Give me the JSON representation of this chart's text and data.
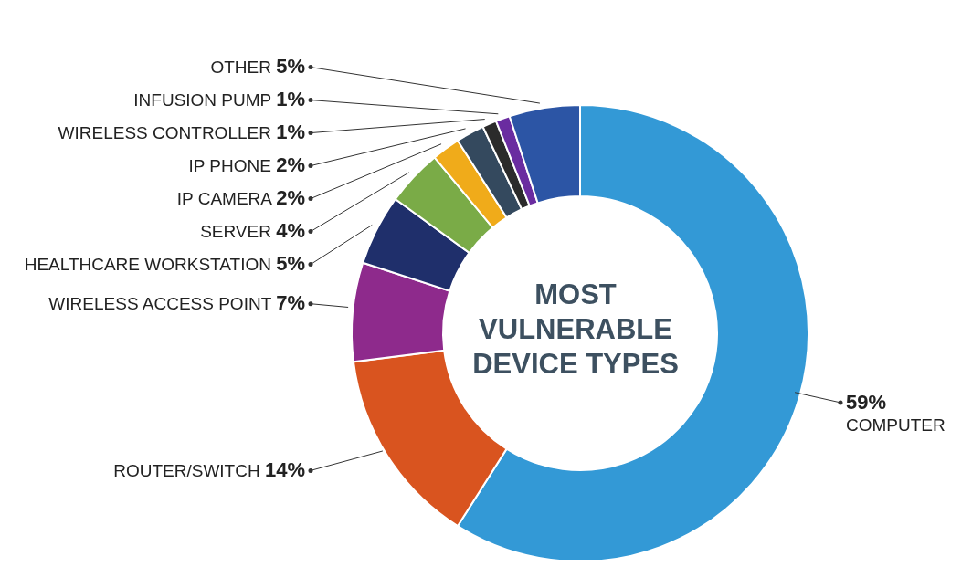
{
  "chart_data": {
    "type": "donut",
    "title": "MOST VULNERABLE DEVICE TYPES",
    "categories": [
      "COMPUTER",
      "ROUTER/SWITCH",
      "WIRELESS ACCESS POINT",
      "HEALTHCARE WORKSTATION",
      "SERVER",
      "IP CAMERA",
      "IP PHONE",
      "WIRELESS CONTROLLER",
      "INFUSION PUMP",
      "OTHER"
    ],
    "values": [
      59,
      14,
      7,
      5,
      4,
      2,
      2,
      1,
      1,
      5
    ],
    "value_labels": [
      "59%",
      "14%",
      "7%",
      "5%",
      "4%",
      "2%",
      "2%",
      "1%",
      "1%",
      "5%"
    ],
    "colors": [
      "#3399d6",
      "#d9541f",
      "#8e2a8c",
      "#1f2f6b",
      "#7aab47",
      "#f0ab1a",
      "#34495e",
      "#2b2b2b",
      "#6a2ca0",
      "#2c55a5"
    ]
  }
}
